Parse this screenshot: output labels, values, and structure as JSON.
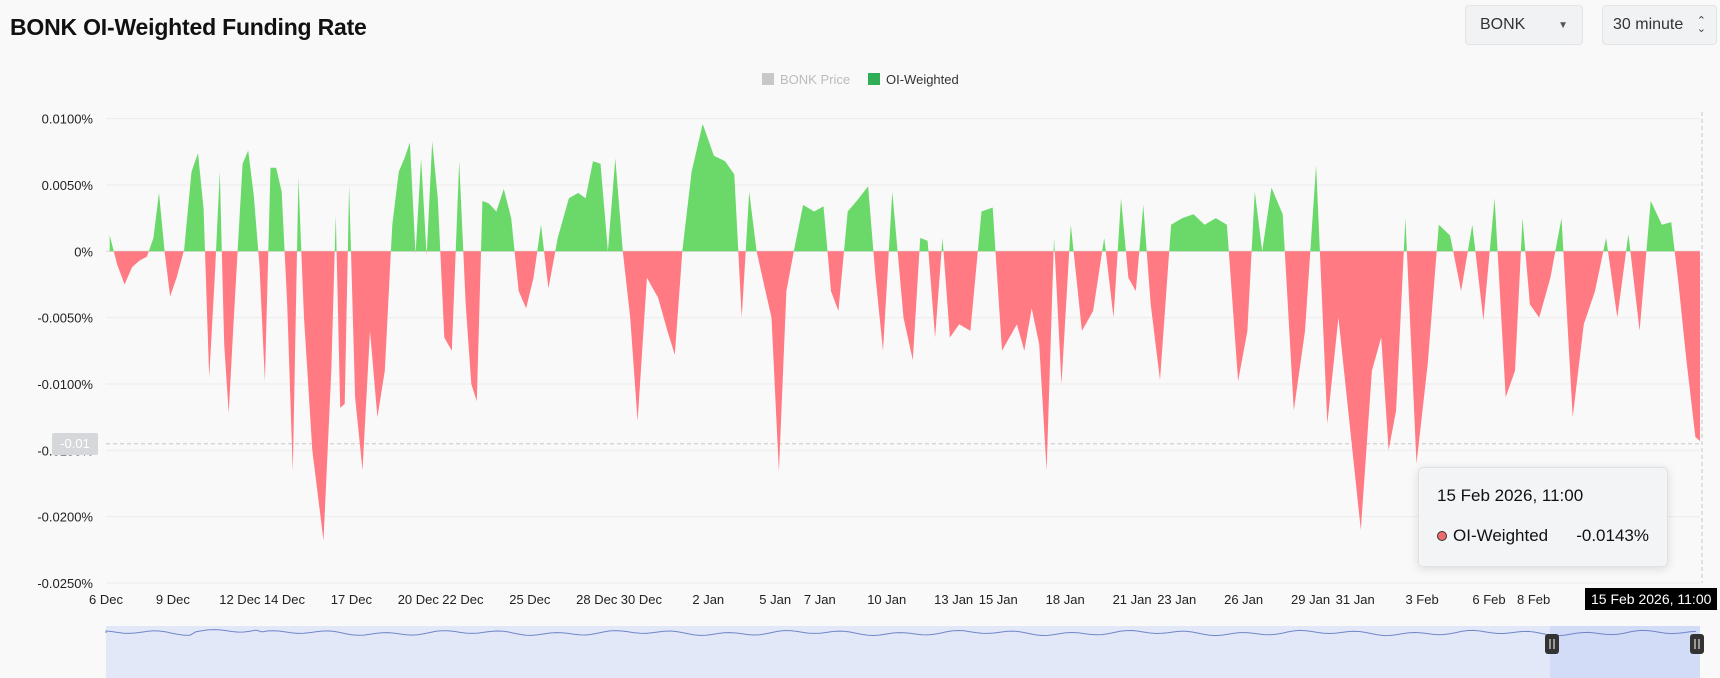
{
  "page": {
    "title": "BONK OI-Weighted Funding Rate"
  },
  "controls": {
    "coin_select": {
      "value": "BONK"
    },
    "interval_select": {
      "value": "30 minute"
    }
  },
  "colors": {
    "positive": "#6bd96a",
    "negative": "#ff7a82",
    "legend_price": "#c8c8c8",
    "legend_oi": "#2fae55",
    "navigator_fill": "#e3e8f8",
    "navigator_line": "#6f86c9"
  },
  "tooltip": {
    "date": "15 Feb 2026, 11:00",
    "series": "OI-Weighted",
    "value": "-0.0143%"
  },
  "crosshair": {
    "x_label": "15 Feb 2026, 11:00",
    "y_label": "-0.01"
  },
  "chart_data": {
    "type": "area",
    "title": "",
    "legend": [
      {
        "name": "BONK Price",
        "active": false
      },
      {
        "name": "OI-Weighted",
        "active": true
      }
    ],
    "legend_position": "top-center",
    "grid": true,
    "ylim": [
      -0.025,
      0.0105
    ],
    "y_ticks": [
      0.01,
      0.005,
      0,
      -0.005,
      -0.01,
      -0.015,
      -0.02,
      -0.025
    ],
    "y_tick_labels": [
      "0.0100%",
      "0.0050%",
      "0%",
      "-0.0050%",
      "-0.0100%",
      "-0.0150%",
      "-0.0200%",
      "-0.0250%"
    ],
    "xlim": [
      "2025-12-06",
      "2026-02-15"
    ],
    "x_ticks": [
      "2025-12-06",
      "2025-12-09",
      "2025-12-12",
      "2025-12-14",
      "2025-12-17",
      "2025-12-20",
      "2025-12-22",
      "2025-12-25",
      "2025-12-28",
      "2025-12-30",
      "2026-01-02",
      "2026-01-05",
      "2026-01-07",
      "2026-01-10",
      "2026-01-13",
      "2026-01-15",
      "2026-01-18",
      "2026-01-21",
      "2026-01-23",
      "2026-01-26",
      "2026-01-29",
      "2026-01-31",
      "2026-02-03",
      "2026-02-06",
      "2026-02-08"
    ],
    "x_tick_labels": [
      "6 Dec",
      "9 Dec",
      "12 Dec",
      "14 Dec",
      "17 Dec",
      "20 Dec",
      "22 Dec",
      "25 Dec",
      "28 Dec",
      "30 Dec",
      "2 Jan",
      "5 Jan",
      "7 Jan",
      "10 Jan",
      "13 Jan",
      "15 Jan",
      "18 Jan",
      "21 Jan",
      "23 Jan",
      "26 Jan",
      "29 Jan",
      "31 Jan",
      "3 Feb",
      "6 Feb",
      "8 Feb"
    ],
    "series": [
      {
        "name": "OI-Weighted",
        "points": [
          [
            "2025-12-06",
            0.0012
          ],
          [
            "2025-12-06",
            -0.001
          ],
          [
            "2025-12-06",
            -0.0025
          ],
          [
            "2025-12-07",
            -0.0012
          ],
          [
            "2025-12-07",
            -0.0007
          ],
          [
            "2025-12-07",
            -0.0004
          ],
          [
            "2025-12-08",
            0.001
          ],
          [
            "2025-12-08",
            0.0044
          ],
          [
            "2025-12-08",
            0.0
          ],
          [
            "2025-12-08",
            -0.0034
          ],
          [
            "2025-12-09",
            -0.002
          ],
          [
            "2025-12-09",
            0.0001
          ],
          [
            "2025-12-09",
            0.006
          ],
          [
            "2025-12-10",
            0.0074
          ],
          [
            "2025-12-10",
            0.0032
          ],
          [
            "2025-12-10",
            -0.0095
          ],
          [
            "2025-12-10",
            -0.002
          ],
          [
            "2025-12-11",
            0.006
          ],
          [
            "2025-12-11",
            -0.007
          ],
          [
            "2025-12-11",
            -0.0122
          ],
          [
            "2025-12-11",
            -0.006
          ],
          [
            "2025-12-11",
            0.0
          ],
          [
            "2025-12-12",
            0.0066
          ],
          [
            "2025-12-12",
            0.0076
          ],
          [
            "2025-12-12",
            0.0042
          ],
          [
            "2025-12-12",
            -0.001
          ],
          [
            "2025-12-13",
            -0.0098
          ],
          [
            "2025-12-13",
            0.0063
          ],
          [
            "2025-12-13",
            0.0063
          ],
          [
            "2025-12-13",
            0.0045
          ],
          [
            "2025-12-14",
            -0.004
          ],
          [
            "2025-12-14",
            -0.0166
          ],
          [
            "2025-12-14",
            0.0056
          ],
          [
            "2025-12-14",
            -0.005
          ],
          [
            "2025-12-15",
            -0.015
          ],
          [
            "2025-12-15",
            -0.0218
          ],
          [
            "2025-12-16",
            -0.009
          ],
          [
            "2025-12-16",
            0.0027
          ],
          [
            "2025-12-16",
            -0.0118
          ],
          [
            "2025-12-16",
            -0.0115
          ],
          [
            "2025-12-16",
            0.005
          ],
          [
            "2025-12-17",
            -0.011
          ],
          [
            "2025-12-17",
            -0.0165
          ],
          [
            "2025-12-17",
            -0.006
          ],
          [
            "2025-12-18",
            -0.0125
          ],
          [
            "2025-12-18",
            -0.009
          ],
          [
            "2025-12-18",
            0.002
          ],
          [
            "2025-12-19",
            0.006
          ],
          [
            "2025-12-19",
            0.007
          ],
          [
            "2025-12-19",
            0.0082
          ],
          [
            "2025-12-19",
            -0.0002
          ],
          [
            "2025-12-20",
            0.007
          ],
          [
            "2025-12-20",
            -0.0003
          ],
          [
            "2025-12-20",
            0.0083
          ],
          [
            "2025-12-20",
            0.004
          ],
          [
            "2025-12-21",
            -0.0065
          ],
          [
            "2025-12-21",
            -0.0075
          ],
          [
            "2025-12-21",
            0.0068
          ],
          [
            "2025-12-22",
            -0.004
          ],
          [
            "2025-12-22",
            -0.01
          ],
          [
            "2025-12-22",
            -0.0113
          ],
          [
            "2025-12-22",
            0.0038
          ],
          [
            "2025-12-23",
            0.0036
          ],
          [
            "2025-12-23",
            0.003
          ],
          [
            "2025-12-23",
            0.0047
          ],
          [
            "2025-12-24",
            0.0025
          ],
          [
            "2025-12-24",
            -0.003
          ],
          [
            "2025-12-24",
            -0.0043
          ],
          [
            "2025-12-25",
            -0.002
          ],
          [
            "2025-12-25",
            0.002
          ],
          [
            "2025-12-25",
            -0.0028
          ],
          [
            "2025-12-26",
            0.001
          ],
          [
            "2025-12-26",
            0.004
          ],
          [
            "2025-12-27",
            0.0044
          ],
          [
            "2025-12-27",
            0.004
          ],
          [
            "2025-12-27",
            0.0068
          ],
          [
            "2025-12-28",
            0.0066
          ],
          [
            "2025-12-28",
            0.0
          ],
          [
            "2025-12-28",
            0.007
          ],
          [
            "2025-12-29",
            0.0
          ],
          [
            "2025-12-29",
            -0.005
          ],
          [
            "2025-12-29",
            -0.0128
          ],
          [
            "2025-12-30",
            -0.002
          ],
          [
            "2025-12-30",
            -0.0035
          ],
          [
            "2025-12-31",
            -0.006
          ],
          [
            "2025-12-31",
            -0.0078
          ],
          [
            "2025-12-31",
            0.0
          ],
          [
            "2026-01-01",
            0.006
          ],
          [
            "2026-01-01",
            0.0096
          ],
          [
            "2026-01-02",
            0.0072
          ],
          [
            "2026-01-02",
            0.0068
          ],
          [
            "2026-01-03",
            0.0058
          ],
          [
            "2026-01-03",
            -0.005
          ],
          [
            "2026-01-03",
            0.0045
          ],
          [
            "2026-01-04",
            0.0
          ],
          [
            "2026-01-04",
            -0.0025
          ],
          [
            "2026-01-04",
            -0.005
          ],
          [
            "2026-01-05",
            -0.0166
          ],
          [
            "2026-01-05",
            -0.003
          ],
          [
            "2026-01-05",
            0.0
          ],
          [
            "2026-01-06",
            0.0035
          ],
          [
            "2026-01-06",
            0.003
          ],
          [
            "2026-01-07",
            0.0034
          ],
          [
            "2026-01-07",
            -0.003
          ],
          [
            "2026-01-07",
            -0.0045
          ],
          [
            "2026-01-08",
            0.003
          ],
          [
            "2026-01-08",
            0.004
          ],
          [
            "2026-01-09",
            0.0049
          ],
          [
            "2026-01-09",
            -0.002
          ],
          [
            "2026-01-09",
            -0.0075
          ],
          [
            "2026-01-10",
            0.0045
          ],
          [
            "2026-01-10",
            -0.005
          ],
          [
            "2026-01-11",
            -0.0082
          ],
          [
            "2026-01-11",
            0.001
          ],
          [
            "2026-01-11",
            0.0008
          ],
          [
            "2026-01-12",
            -0.0065
          ],
          [
            "2026-01-12",
            0.001
          ],
          [
            "2026-01-12",
            -0.0065
          ],
          [
            "2026-01-13",
            -0.0055
          ],
          [
            "2026-01-13",
            -0.006
          ],
          [
            "2026-01-14",
            0.003
          ],
          [
            "2026-01-14",
            0.0033
          ],
          [
            "2026-01-15",
            -0.0075
          ],
          [
            "2026-01-15",
            -0.0065
          ],
          [
            "2026-01-15",
            -0.0055
          ],
          [
            "2026-01-16",
            -0.0075
          ],
          [
            "2026-01-16",
            -0.0043
          ],
          [
            "2026-01-16",
            -0.007
          ],
          [
            "2026-01-17",
            -0.0165
          ],
          [
            "2026-01-17",
            0.001
          ],
          [
            "2026-01-17",
            -0.01
          ],
          [
            "2026-01-18",
            0.002
          ],
          [
            "2026-01-18",
            -0.006
          ],
          [
            "2026-01-19",
            -0.0045
          ],
          [
            "2026-01-19",
            0.001
          ],
          [
            "2026-01-20",
            -0.005
          ],
          [
            "2026-01-20",
            0.004
          ],
          [
            "2026-01-20",
            -0.002
          ],
          [
            "2026-01-21",
            -0.003
          ],
          [
            "2026-01-21",
            0.0035
          ],
          [
            "2026-01-21",
            -0.004
          ],
          [
            "2026-01-22",
            -0.0097
          ],
          [
            "2026-01-22",
            0.002
          ],
          [
            "2026-01-23",
            0.0025
          ],
          [
            "2026-01-23",
            0.0028
          ],
          [
            "2026-01-24",
            0.002
          ],
          [
            "2026-01-24",
            0.0025
          ],
          [
            "2026-01-25",
            0.002
          ],
          [
            "2026-01-25",
            -0.0098
          ],
          [
            "2026-01-26",
            -0.006
          ],
          [
            "2026-01-26",
            0.0045
          ],
          [
            "2026-01-26",
            0.0
          ],
          [
            "2026-01-27",
            0.0048
          ],
          [
            "2026-01-27",
            0.0028
          ],
          [
            "2026-01-28",
            -0.012
          ],
          [
            "2026-01-28",
            -0.006
          ],
          [
            "2026-01-29",
            0.0065
          ],
          [
            "2026-01-29",
            -0.013
          ],
          [
            "2026-01-30",
            -0.005
          ],
          [
            "2026-01-30",
            -0.013
          ],
          [
            "2026-01-31",
            -0.021
          ],
          [
            "2026-01-31",
            -0.009
          ],
          [
            "2026-02-01",
            -0.0065
          ],
          [
            "2026-02-01",
            -0.015
          ],
          [
            "2026-02-01",
            -0.012
          ],
          [
            "2026-02-02",
            0.0025
          ],
          [
            "2026-02-02",
            -0.016
          ],
          [
            "2026-02-03",
            -0.0085
          ],
          [
            "2026-02-03",
            0.002
          ],
          [
            "2026-02-04",
            0.0012
          ],
          [
            "2026-02-04",
            -0.003
          ],
          [
            "2026-02-05",
            0.002
          ],
          [
            "2026-02-05",
            -0.0052
          ],
          [
            "2026-02-06",
            0.004
          ],
          [
            "2026-02-06",
            -0.011
          ],
          [
            "2026-02-07",
            -0.009
          ],
          [
            "2026-02-07",
            0.0025
          ],
          [
            "2026-02-07",
            -0.004
          ],
          [
            "2026-02-08",
            -0.005
          ],
          [
            "2026-02-08",
            -0.002
          ],
          [
            "2026-02-09",
            0.0025
          ],
          [
            "2026-02-09",
            -0.0125
          ],
          [
            "2026-02-10",
            -0.0055
          ],
          [
            "2026-02-10",
            -0.003
          ],
          [
            "2026-02-11",
            0.001
          ],
          [
            "2026-02-11",
            -0.005
          ],
          [
            "2026-02-12",
            0.0013
          ],
          [
            "2026-02-12",
            -0.006
          ],
          [
            "2026-02-13",
            0.0038
          ],
          [
            "2026-02-13",
            0.002
          ],
          [
            "2026-02-14",
            0.0022
          ],
          [
            "2026-02-14",
            -0.0025
          ],
          [
            "2026-02-14",
            -0.008
          ],
          [
            "2026-02-15",
            -0.014
          ],
          [
            "2026-02-15",
            -0.0143
          ]
        ]
      }
    ]
  }
}
